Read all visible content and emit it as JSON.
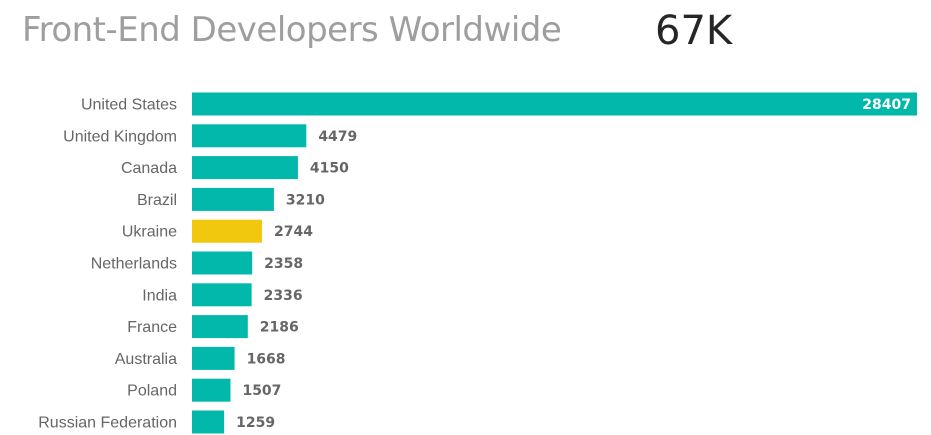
{
  "header": {
    "title": "Front-End Developers Worldwide",
    "kpi_value": "67K"
  },
  "chart_data": {
    "type": "bar",
    "orientation": "horizontal",
    "categories": [
      "United States",
      "United Kingdom",
      "Canada",
      "Brazil",
      "Ukraine",
      "Netherlands",
      "India",
      "France",
      "Australia",
      "Poland",
      "Russian Federation"
    ],
    "values": [
      28407,
      4479,
      4150,
      3210,
      2744,
      2358,
      2336,
      2186,
      1668,
      1507,
      1259
    ],
    "data_labels": [
      "28407",
      "4479",
      "4150",
      "3210",
      "2744",
      "2358",
      "2336",
      "2186",
      "1668",
      "1507",
      "1259"
    ],
    "highlighted_category": "Ukraine",
    "bar_color": "#01b8aa",
    "highlight_color": "#f2c80f",
    "xlim": [
      0,
      28407
    ],
    "grid": false,
    "legend": "none"
  }
}
